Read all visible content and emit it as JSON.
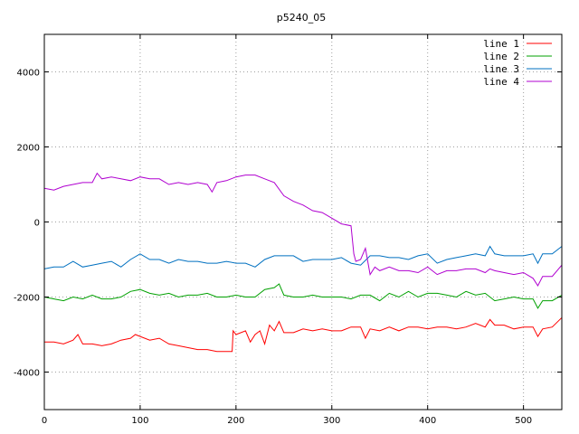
{
  "chart_data": {
    "type": "line",
    "title": "p5240_05",
    "xlim": [
      0,
      540
    ],
    "ylim": [
      -5000,
      5000
    ],
    "xticks": [
      0,
      100,
      200,
      300,
      400,
      500
    ],
    "yticks": [
      -4000,
      -2000,
      0,
      2000,
      4000
    ],
    "grid": true,
    "legend_position": "top-right",
    "series": [
      {
        "name": "line 1",
        "color": "#ff0000",
        "x": [
          0,
          10,
          20,
          30,
          35,
          40,
          50,
          60,
          70,
          80,
          90,
          95,
          100,
          110,
          120,
          130,
          140,
          150,
          160,
          170,
          180,
          190,
          196,
          197,
          200,
          210,
          215,
          220,
          225,
          230,
          235,
          240,
          245,
          250,
          260,
          270,
          280,
          290,
          300,
          310,
          320,
          330,
          335,
          340,
          350,
          360,
          370,
          380,
          390,
          400,
          410,
          420,
          430,
          440,
          450,
          460,
          465,
          470,
          480,
          490,
          500,
          510,
          515,
          520,
          530,
          540
        ],
        "y": [
          -3200,
          -3200,
          -3250,
          -3150,
          -3000,
          -3250,
          -3250,
          -3300,
          -3250,
          -3150,
          -3100,
          -3000,
          -3050,
          -3150,
          -3100,
          -3250,
          -3300,
          -3350,
          -3400,
          -3400,
          -3450,
          -3450,
          -3450,
          -2900,
          -3000,
          -2900,
          -3200,
          -3000,
          -2900,
          -3250,
          -2750,
          -2900,
          -2650,
          -2950,
          -2950,
          -2850,
          -2900,
          -2850,
          -2900,
          -2900,
          -2800,
          -2800,
          -3100,
          -2850,
          -2900,
          -2800,
          -2900,
          -2800,
          -2800,
          -2850,
          -2800,
          -2800,
          -2850,
          -2800,
          -2700,
          -2800,
          -2600,
          -2750,
          -2750,
          -2850,
          -2800,
          -2800,
          -3050,
          -2850,
          -2800,
          -2550
        ]
      },
      {
        "name": "line 2",
        "color": "#00a000",
        "x": [
          0,
          10,
          20,
          30,
          40,
          50,
          60,
          70,
          80,
          90,
          100,
          110,
          120,
          130,
          140,
          150,
          160,
          170,
          180,
          190,
          200,
          210,
          220,
          230,
          240,
          245,
          250,
          260,
          270,
          280,
          290,
          300,
          310,
          320,
          330,
          340,
          350,
          360,
          370,
          380,
          390,
          400,
          410,
          420,
          430,
          440,
          450,
          460,
          470,
          480,
          490,
          500,
          510,
          515,
          520,
          530,
          540
        ],
        "y": [
          -2000,
          -2050,
          -2100,
          -2000,
          -2050,
          -1950,
          -2050,
          -2050,
          -2000,
          -1850,
          -1800,
          -1900,
          -1950,
          -1900,
          -2000,
          -1950,
          -1950,
          -1900,
          -2000,
          -2000,
          -1950,
          -2000,
          -2000,
          -1800,
          -1750,
          -1650,
          -1950,
          -2000,
          -2000,
          -1950,
          -2000,
          -2000,
          -2000,
          -2050,
          -1950,
          -1950,
          -2100,
          -1900,
          -2000,
          -1850,
          -2000,
          -1900,
          -1900,
          -1950,
          -2000,
          -1850,
          -1950,
          -1900,
          -2100,
          -2050,
          -2000,
          -2050,
          -2050,
          -2300,
          -2100,
          -2100,
          -1950
        ]
      },
      {
        "name": "line 3",
        "color": "#0070c0",
        "x": [
          0,
          10,
          20,
          30,
          40,
          50,
          60,
          70,
          80,
          90,
          100,
          110,
          120,
          130,
          140,
          150,
          160,
          170,
          180,
          190,
          200,
          210,
          220,
          230,
          240,
          250,
          260,
          270,
          280,
          290,
          300,
          310,
          320,
          330,
          340,
          350,
          360,
          370,
          380,
          390,
          400,
          410,
          420,
          430,
          440,
          450,
          460,
          465,
          470,
          480,
          490,
          500,
          510,
          515,
          520,
          530,
          540
        ],
        "y": [
          -1250,
          -1200,
          -1200,
          -1050,
          -1200,
          -1150,
          -1100,
          -1050,
          -1200,
          -1000,
          -850,
          -1000,
          -1000,
          -1100,
          -1000,
          -1050,
          -1050,
          -1100,
          -1100,
          -1050,
          -1100,
          -1100,
          -1200,
          -1000,
          -900,
          -900,
          -900,
          -1050,
          -1000,
          -1000,
          -1000,
          -950,
          -1100,
          -1150,
          -900,
          -900,
          -950,
          -950,
          -1000,
          -900,
          -850,
          -1100,
          -1000,
          -950,
          -900,
          -850,
          -900,
          -650,
          -850,
          -900,
          -900,
          -900,
          -850,
          -1100,
          -850,
          -850,
          -650
        ]
      },
      {
        "name": "line 4",
        "color": "#b000d0",
        "x": [
          0,
          10,
          20,
          30,
          40,
          50,
          55,
          60,
          70,
          80,
          90,
          100,
          110,
          120,
          130,
          140,
          150,
          160,
          170,
          175,
          180,
          190,
          200,
          210,
          220,
          230,
          240,
          250,
          260,
          270,
          280,
          290,
          300,
          310,
          320,
          323,
          325,
          330,
          335,
          340,
          345,
          350,
          360,
          370,
          380,
          390,
          400,
          410,
          420,
          430,
          440,
          450,
          460,
          465,
          470,
          480,
          490,
          500,
          510,
          515,
          520,
          530,
          540
        ],
        "y": [
          900,
          850,
          950,
          1000,
          1050,
          1050,
          1300,
          1150,
          1200,
          1150,
          1100,
          1200,
          1150,
          1150,
          1000,
          1050,
          1000,
          1050,
          1000,
          800,
          1050,
          1100,
          1200,
          1250,
          1250,
          1150,
          1050,
          700,
          550,
          450,
          300,
          250,
          100,
          -50,
          -100,
          -850,
          -1050,
          -1000,
          -700,
          -1400,
          -1200,
          -1300,
          -1200,
          -1300,
          -1300,
          -1350,
          -1200,
          -1400,
          -1300,
          -1300,
          -1250,
          -1250,
          -1350,
          -1250,
          -1300,
          -1350,
          -1400,
          -1350,
          -1500,
          -1700,
          -1450,
          -1450,
          -1150
        ]
      }
    ]
  }
}
